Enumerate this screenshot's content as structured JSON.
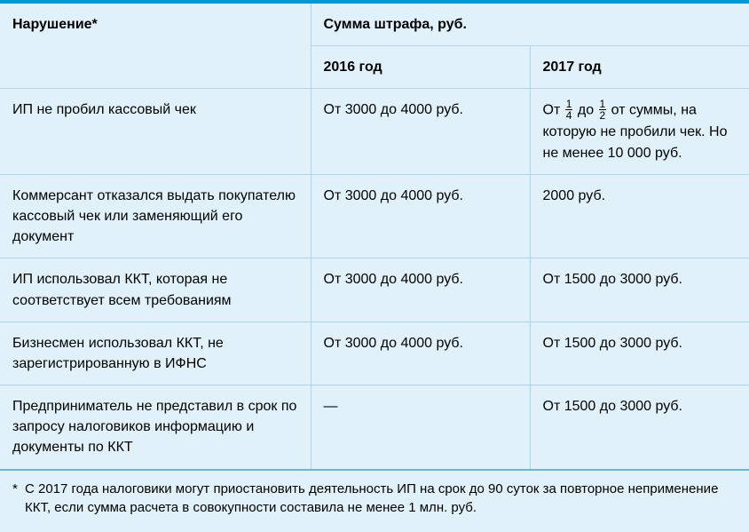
{
  "table": {
    "background_color": "#e1f1fa",
    "top_bar_color": "#0099d8",
    "border_color": "#a9d6ed",
    "bottom_border_color": "#5fb9e3",
    "text_color": "#000000",
    "body_fontsize": 16,
    "footnote_fontsize": 15,
    "header": {
      "violation": "Нарушение*",
      "fine_sum": "Сумма штрафа, руб.",
      "year_2016": "2016 год",
      "year_2017": "2017 год"
    },
    "rows": [
      {
        "violation": "ИП не пробил кассовый чек",
        "y2016": "От 3000 до 4000 руб.",
        "y2017_prefix": "От ",
        "y2017_frac1_num": "1",
        "y2017_frac1_den": "4",
        "y2017_mid": " до ",
        "y2017_frac2_num": "1",
        "y2017_frac2_den": "2",
        "y2017_suffix": " от суммы, на которую не пробили чек. Но не менее 10 000 руб."
      },
      {
        "violation": "Коммерсант отказался выдать покупателю кассовый чек или заменяющий его документ",
        "y2016": "От 3000 до 4000 руб.",
        "y2017": "2000 руб."
      },
      {
        "violation": "ИП использовал ККТ, которая не соответствует всем требованиям",
        "y2016": "От 3000 до 4000 руб.",
        "y2017": "От 1500 до 3000 руб."
      },
      {
        "violation": "Бизнесмен использовал ККТ, не зарегистрированную в ИФНС",
        "y2016": "От 3000 до 4000 руб.",
        "y2017": "От 1500 до 3000 руб."
      },
      {
        "violation": "Предприниматель не представил в срок по запросу налоговиков информацию и документы по ККТ",
        "y2016": "—",
        "y2017": "От 1500 до 3000 руб."
      }
    ],
    "footnote_asterisk": "*",
    "footnote": "С 2017 года налоговики могут приостановить деятельность ИП на срок до 90 суток за повторное неприменение ККТ, если сумма расчета в совокупности составила не менее 1 млн. руб."
  }
}
